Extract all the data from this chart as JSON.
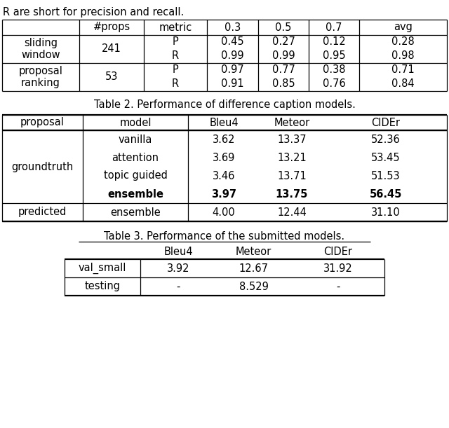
{
  "intro_text": "R are short for precision and recall.",
  "t1_col_headers": [
    "",
    "#props",
    "metric",
    "0.3",
    "0.5",
    "0.7",
    "avg"
  ],
  "t1_row0_label": "sliding\nwindow",
  "t1_row1_label": "proposal\nranking",
  "t1_props": [
    "241",
    "53"
  ],
  "t1_data": [
    [
      [
        "0.45",
        "0.99"
      ],
      [
        "0.27",
        "0.99"
      ],
      [
        "0.12",
        "0.95"
      ],
      [
        "0.28",
        "0.98"
      ]
    ],
    [
      [
        "0.97",
        "0.91"
      ],
      [
        "0.77",
        "0.85"
      ],
      [
        "0.38",
        "0.76"
      ],
      [
        "0.71",
        "0.84"
      ]
    ]
  ],
  "table2_title": "Table 2. Performance of difference caption models.",
  "t2_col_headers": [
    "proposal",
    "model",
    "Bleu4",
    "Meteor",
    "CIDEr"
  ],
  "t2_models": [
    "vanilla",
    "attention",
    "topic guided",
    "ensemble",
    "ensemble"
  ],
  "t2_proposal_labels": [
    "groundtruth",
    "predicted"
  ],
  "t2_vals": [
    [
      "3.62",
      "13.37",
      "52.36"
    ],
    [
      "3.69",
      "13.21",
      "53.45"
    ],
    [
      "3.46",
      "13.71",
      "51.53"
    ],
    [
      "3.97",
      "13.75",
      "56.45"
    ],
    [
      "4.00",
      "12.44",
      "31.10"
    ]
  ],
  "t2_bold": [
    false,
    false,
    false,
    true,
    false
  ],
  "table3_title": "Table 3. Performance of the submitted models.",
  "t3_col_headers": [
    "",
    "Bleu4",
    "Meteor",
    "CIDEr"
  ],
  "t3_rows": [
    [
      "val_small",
      "3.92",
      "12.67",
      "31.92"
    ],
    [
      "testing",
      "-",
      "8.529",
      "-"
    ]
  ],
  "bg_color": "#ffffff",
  "text_color": "#000000",
  "font_size": 10.5
}
